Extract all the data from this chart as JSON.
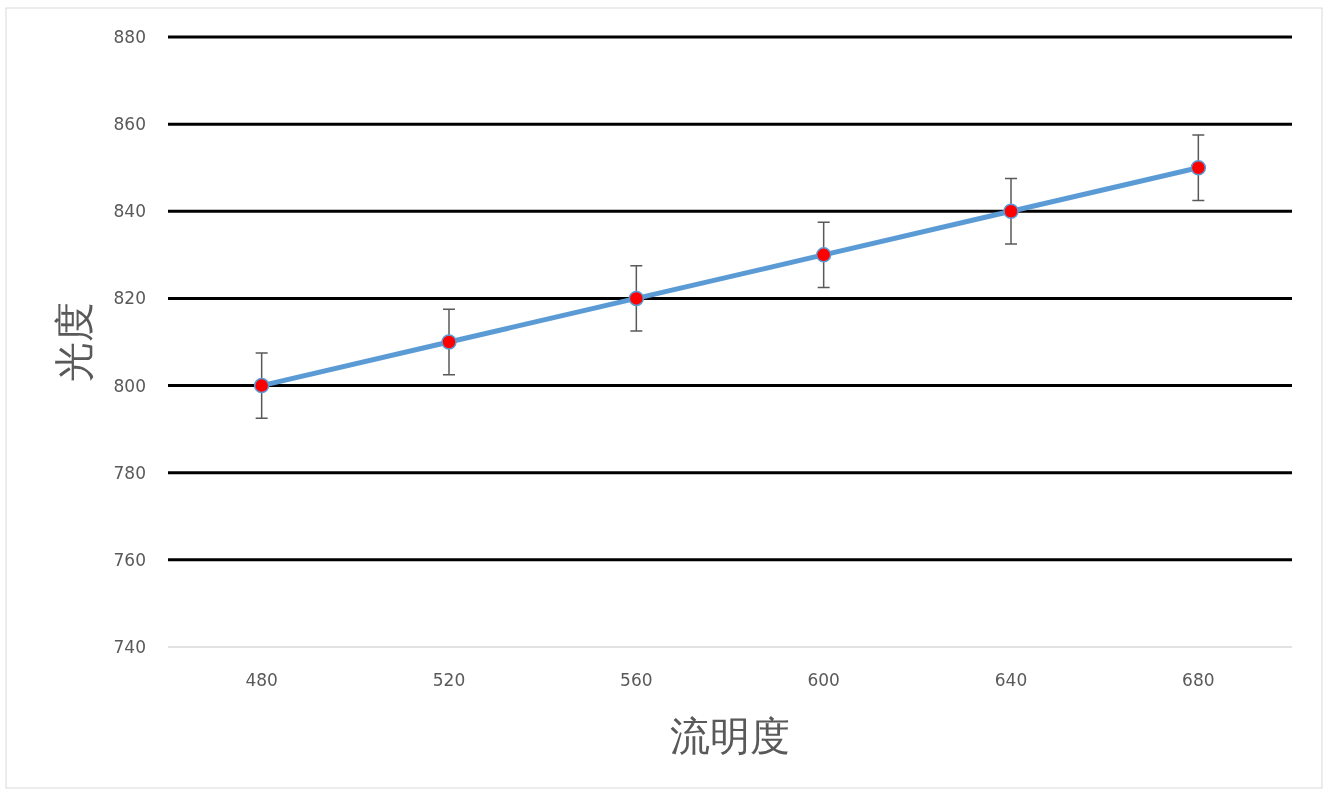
{
  "chart_data": {
    "type": "line",
    "xlabel": "流明度",
    "ylabel": "光度",
    "categories": [
      "480",
      "520",
      "560",
      "600",
      "640",
      "680"
    ],
    "series": [
      {
        "color": "#5b9bd5",
        "values": [
          800,
          810,
          820,
          830,
          840,
          850
        ],
        "errors": [
          7.5,
          7.5,
          7.5,
          7.5,
          7.5,
          7.5
        ]
      }
    ],
    "ylim": [
      740,
      880
    ],
    "yticks": [
      740,
      760,
      780,
      800,
      820,
      840,
      860,
      880
    ],
    "grid": "y",
    "marker": "circle",
    "line_style": "solid"
  }
}
